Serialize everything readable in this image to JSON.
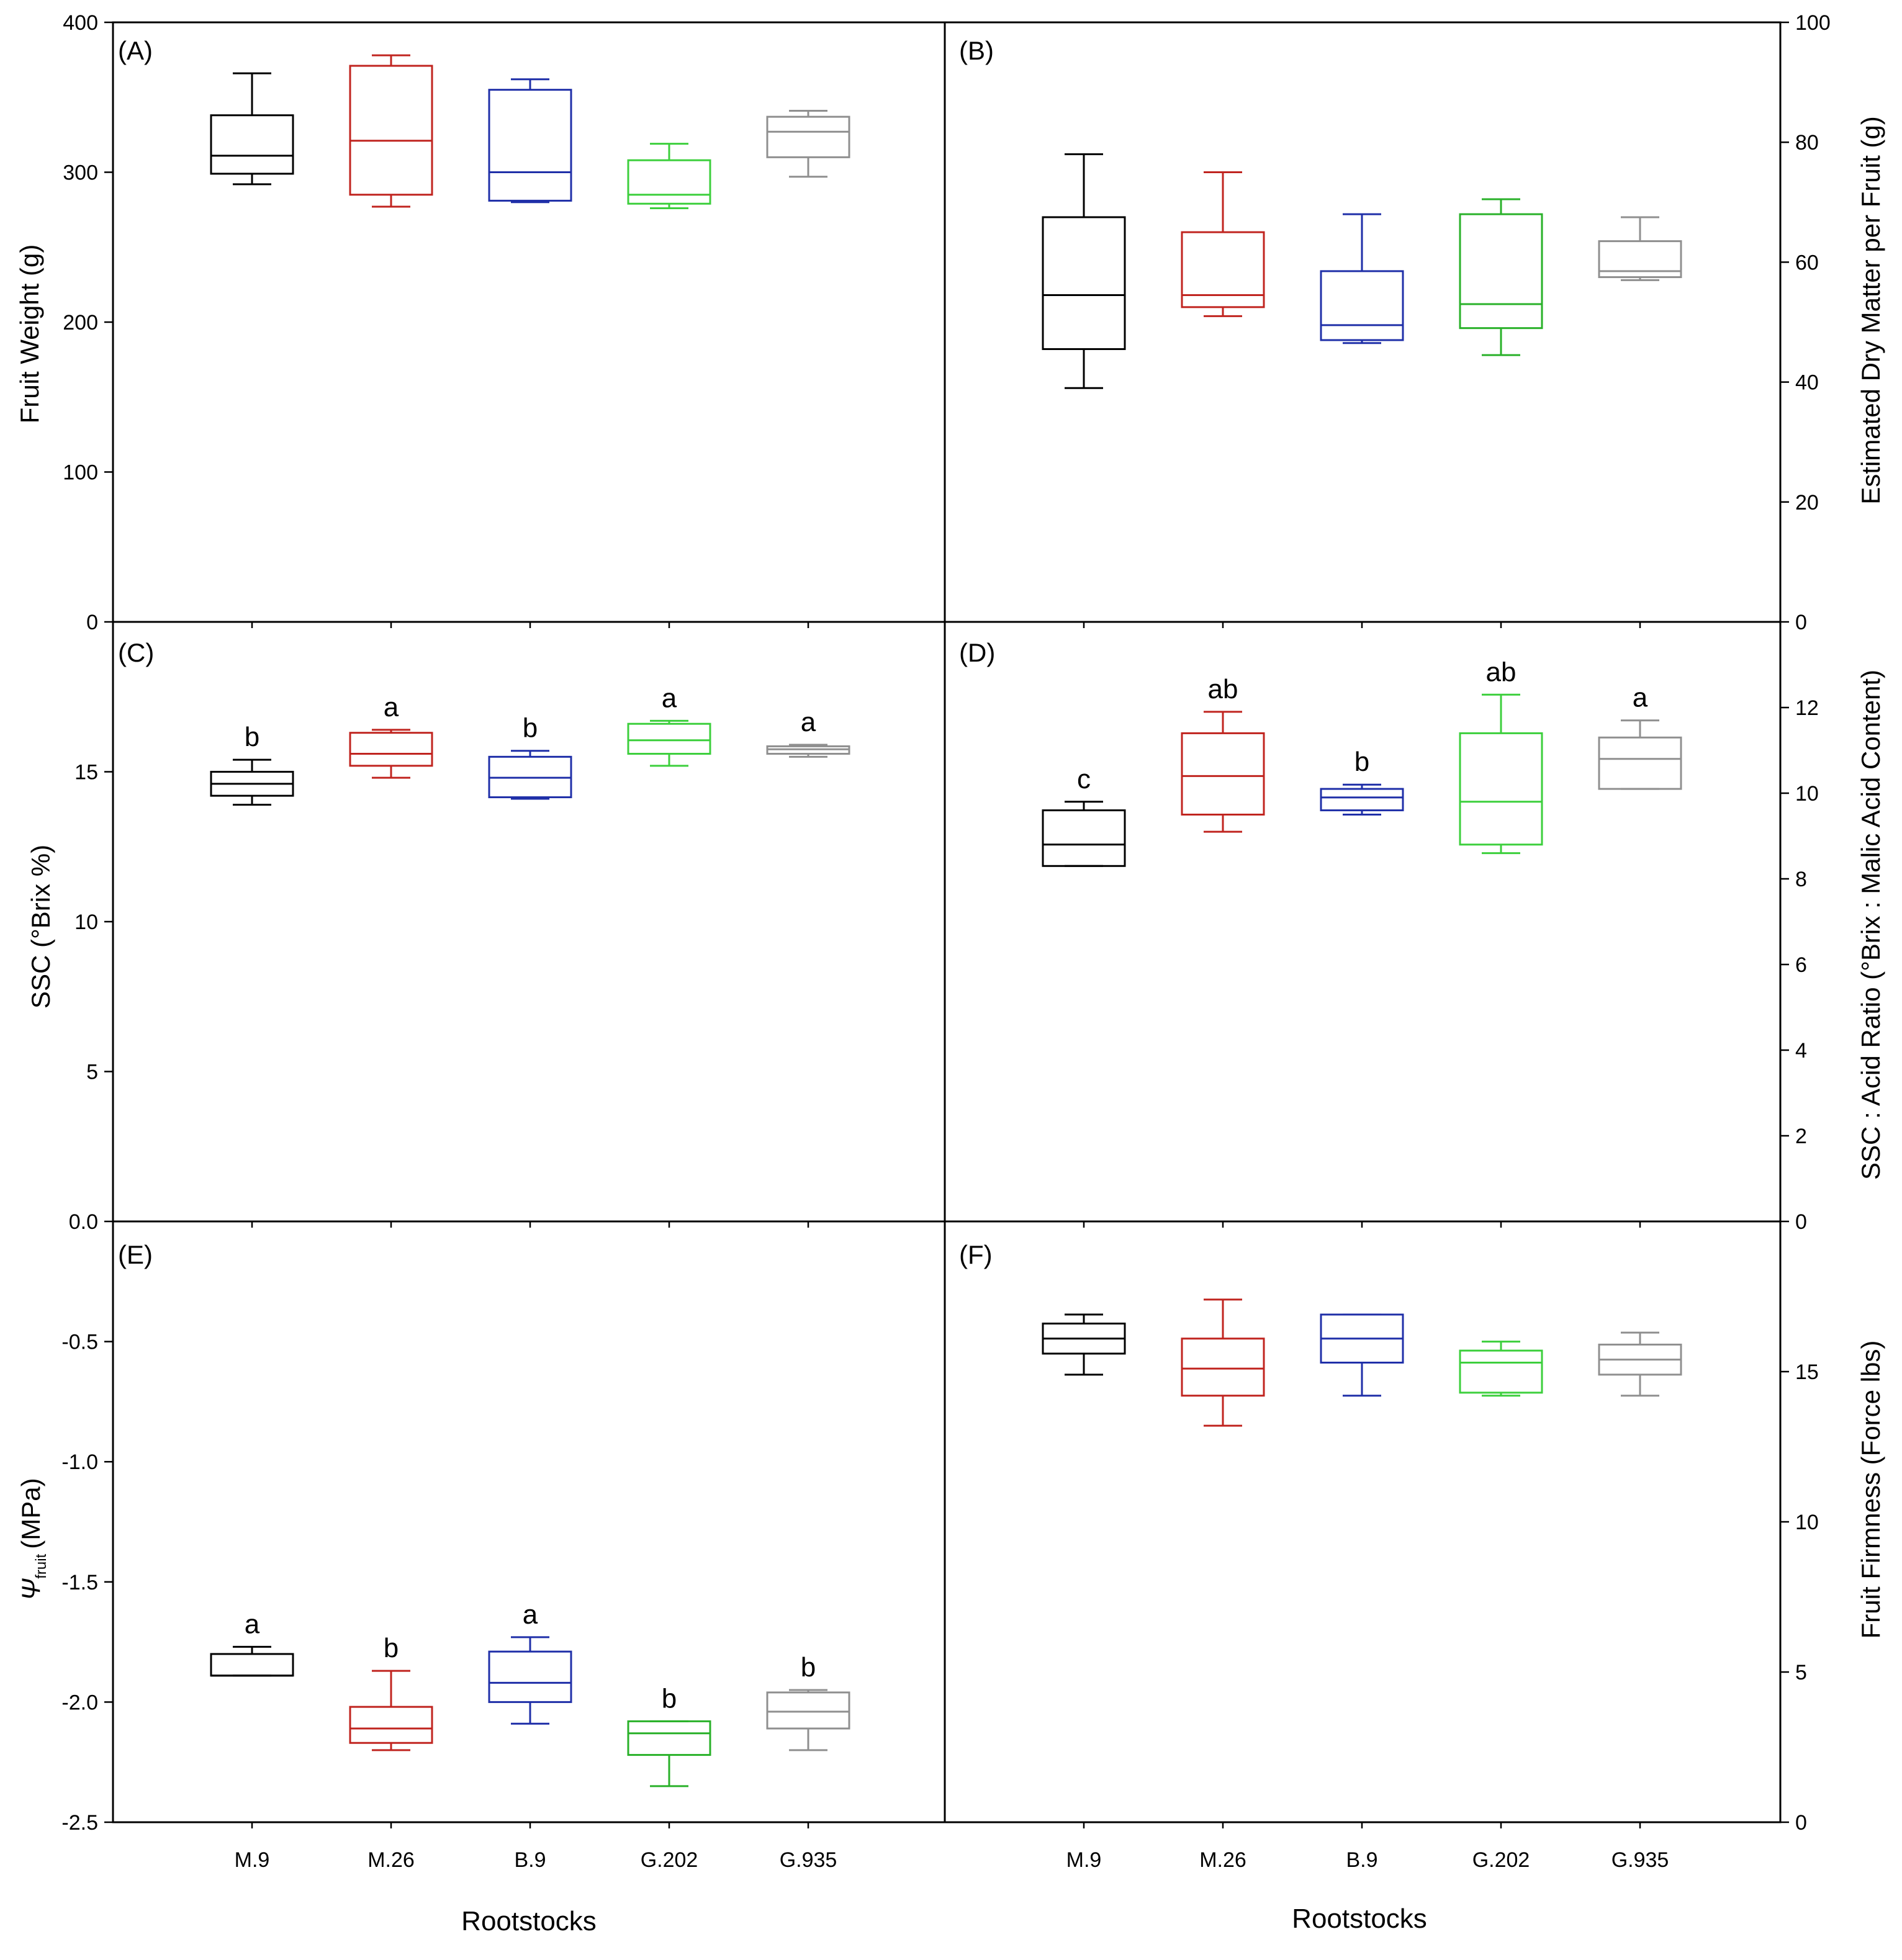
{
  "chart_data": [
    {
      "panel": "A",
      "type": "box",
      "label": "(A)",
      "ylabel": "Fruit Weight (g)",
      "ylim": [
        0,
        400
      ],
      "yticks": [
        "0",
        "100",
        "200",
        "300",
        "400"
      ],
      "axis_side": "left",
      "categories": [
        "M.9",
        "M.26",
        "B.9",
        "G.202",
        "G.935"
      ],
      "colors": [
        "#000000",
        "#c0241f",
        "#1f2fa8",
        "#3ccf3c",
        "#8f8f8f"
      ],
      "boxes": [
        {
          "min": 292,
          "q1": 299,
          "median": 311,
          "q3": 338,
          "max": 366
        },
        {
          "min": 277,
          "q1": 285,
          "median": 321,
          "q3": 371,
          "max": 378
        },
        {
          "min": 280,
          "q1": 281,
          "median": 300,
          "q3": 355,
          "max": 362
        },
        {
          "min": 276,
          "q1": 279,
          "median": 285,
          "q3": 308,
          "max": 319
        },
        {
          "min": 297,
          "q1": 310,
          "median": 327,
          "q3": 337,
          "max": 341
        }
      ],
      "letters": []
    },
    {
      "panel": "B",
      "type": "box",
      "label": "(B)",
      "ylabel": "Estimated Dry Matter per Fruit (g)",
      "ylim": [
        0,
        100
      ],
      "yticks": [
        "0",
        "20",
        "40",
        "60",
        "80",
        "100"
      ],
      "axis_side": "right",
      "categories": [
        "M.9",
        "M.26",
        "B.9",
        "G.202",
        "G.935"
      ],
      "colors": [
        "#000000",
        "#c0241f",
        "#1f2fa8",
        "#29b129",
        "#8f8f8f"
      ],
      "boxes": [
        {
          "min": 39,
          "q1": 45.5,
          "median": 54.5,
          "q3": 67.5,
          "max": 78
        },
        {
          "min": 51,
          "q1": 52.5,
          "median": 54.5,
          "q3": 65,
          "max": 75
        },
        {
          "min": 46.5,
          "q1": 47,
          "median": 49.5,
          "q3": 58.5,
          "max": 68
        },
        {
          "min": 44.5,
          "q1": 49,
          "median": 53,
          "q3": 68,
          "max": 70.5
        },
        {
          "min": 57,
          "q1": 57.5,
          "median": 58.5,
          "q3": 63.5,
          "max": 67.5
        }
      ],
      "letters": []
    },
    {
      "panel": "C",
      "type": "box",
      "label": "(C)",
      "ylabel": "SSC (°Brix %)",
      "ylim": [
        0,
        20
      ],
      "yticks": [
        "0.0",
        "5",
        "10",
        "15"
      ],
      "ytick_values": [
        0,
        5,
        10,
        15
      ],
      "axis_side": "left",
      "categories": [
        "M.9",
        "M.26",
        "B.9",
        "G.202",
        "G.935"
      ],
      "colors": [
        "#000000",
        "#c0241f",
        "#1f2fa8",
        "#3ccf3c",
        "#8f8f8f"
      ],
      "boxes": [
        {
          "min": 13.9,
          "q1": 14.2,
          "median": 14.6,
          "q3": 15.0,
          "max": 15.4
        },
        {
          "min": 14.8,
          "q1": 15.2,
          "median": 15.6,
          "q3": 16.3,
          "max": 16.4
        },
        {
          "min": 14.1,
          "q1": 14.15,
          "median": 14.8,
          "q3": 15.5,
          "max": 15.7
        },
        {
          "min": 15.2,
          "q1": 15.6,
          "median": 16.05,
          "q3": 16.6,
          "max": 16.7
        },
        {
          "min": 15.5,
          "q1": 15.6,
          "median": 15.75,
          "q3": 15.85,
          "max": 15.9
        }
      ],
      "letters": [
        "b",
        "a",
        "b",
        "a",
        "a"
      ]
    },
    {
      "panel": "D",
      "type": "box",
      "label": "(D)",
      "ylabel": "SSC : Acid Ratio (°Brix : Malic Acid Content)",
      "ylim": [
        0,
        14
      ],
      "yticks": [
        "0",
        "2",
        "4",
        "6",
        "8",
        "10",
        "12"
      ],
      "ytick_values": [
        0,
        2,
        4,
        6,
        8,
        10,
        12
      ],
      "axis_side": "right",
      "categories": [
        "M.9",
        "M.26",
        "B.9",
        "G.202",
        "G.935"
      ],
      "colors": [
        "#000000",
        "#c0241f",
        "#1f2fa8",
        "#3ccf3c",
        "#8f8f8f"
      ],
      "boxes": [
        {
          "min": 8.3,
          "q1": 8.3,
          "median": 8.8,
          "q3": 9.6,
          "max": 9.8
        },
        {
          "min": 9.1,
          "q1": 9.5,
          "median": 10.4,
          "q3": 11.4,
          "max": 11.9
        },
        {
          "min": 9.5,
          "q1": 9.6,
          "median": 9.9,
          "q3": 10.1,
          "max": 10.2
        },
        {
          "min": 8.6,
          "q1": 8.8,
          "median": 9.8,
          "q3": 11.4,
          "max": 12.3
        },
        {
          "min": 10.1,
          "q1": 10.1,
          "median": 10.8,
          "q3": 11.3,
          "max": 11.7
        }
      ],
      "letters": [
        "c",
        "ab",
        "b",
        "ab",
        "a"
      ]
    },
    {
      "panel": "E",
      "type": "box",
      "label": "(E)",
      "ylabel_main": "Ψ",
      "ylabel_sub": "fruit",
      "ylabel_unit": "(MPa)",
      "ylim": [
        -2.5,
        0
      ],
      "yticks": [
        "-2.5",
        "-2.0",
        "-1.5",
        "-1.0",
        "-0.5"
      ],
      "ytick_values": [
        -2.5,
        -2.0,
        -1.5,
        -1.0,
        -0.5
      ],
      "axis_side": "left",
      "categories": [
        "M.9",
        "M.26",
        "B.9",
        "G.202",
        "G.935"
      ],
      "xlabel": "Rootstocks",
      "colors": [
        "#000000",
        "#c0241f",
        "#1f2fa8",
        "#29b129",
        "#8f8f8f"
      ],
      "boxes": [
        {
          "min": -1.89,
          "q1": -1.89,
          "median": -1.89,
          "q3": -1.8,
          "max": -1.77
        },
        {
          "min": -2.2,
          "q1": -2.17,
          "median": -2.11,
          "q3": -2.02,
          "max": -1.87
        },
        {
          "min": -2.09,
          "q1": -2.0,
          "median": -1.92,
          "q3": -1.79,
          "max": -1.73
        },
        {
          "min": -2.35,
          "q1": -2.22,
          "median": -2.13,
          "q3": -2.08,
          "max": -2.08
        },
        {
          "min": -2.2,
          "q1": -2.11,
          "median": -2.04,
          "q3": -1.96,
          "max": -1.95
        }
      ],
      "letters": [
        "a",
        "b",
        "a",
        "b",
        "b"
      ]
    },
    {
      "panel": "F",
      "type": "box",
      "label": "(F)",
      "ylabel": "Fruit Firmness (Force lbs)",
      "ylim": [
        0,
        20
      ],
      "yticks": [
        "0",
        "5",
        "10",
        "15"
      ],
      "ytick_values": [
        0,
        5,
        10,
        15
      ],
      "axis_side": "right",
      "categories": [
        "M.9",
        "M.26",
        "B.9",
        "G.202",
        "G.935"
      ],
      "xlabel": "Rootstocks",
      "colors": [
        "#000000",
        "#c0241f",
        "#1f2fa8",
        "#3ccf3c",
        "#8f8f8f"
      ],
      "boxes": [
        {
          "min": 14.9,
          "q1": 15.6,
          "median": 16.1,
          "q3": 16.6,
          "max": 16.9
        },
        {
          "min": 13.2,
          "q1": 14.2,
          "median": 15.1,
          "q3": 16.1,
          "max": 17.4
        },
        {
          "min": 14.2,
          "q1": 15.3,
          "median": 16.1,
          "q3": 16.9,
          "max": 16.9
        },
        {
          "min": 14.2,
          "q1": 14.3,
          "median": 15.3,
          "q3": 15.7,
          "max": 16.0
        },
        {
          "min": 14.2,
          "q1": 14.9,
          "median": 15.4,
          "q3": 15.9,
          "max": 16.3
        }
      ],
      "letters": []
    }
  ]
}
